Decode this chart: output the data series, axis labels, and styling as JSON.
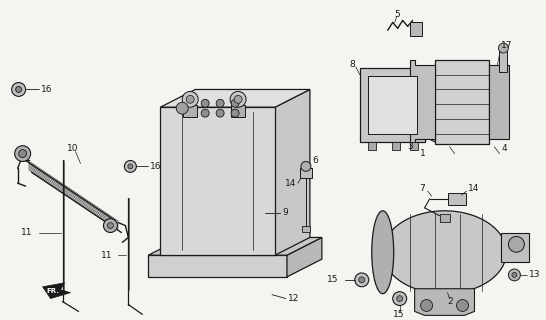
{
  "bg_color": "#f4f4f0",
  "line_color": "#1a1a1a",
  "fig_width": 5.46,
  "fig_height": 3.2,
  "dpi": 100
}
